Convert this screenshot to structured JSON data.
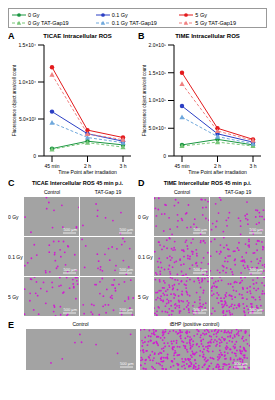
{
  "chart_data": [
    {
      "panel": "A",
      "type": "line",
      "title": "TICAE Intracellular ROS",
      "x_label": "Time Point after irradiation",
      "y_label": "Fluorescence object area/cell count",
      "categories": [
        "45 min",
        "2 h",
        "3 h"
      ],
      "ylim": [
        0,
        15000
      ],
      "yticks": [
        0,
        {
          "value": 5000,
          "label": "5.0×10³"
        },
        {
          "value": 10000,
          "label": "1.0×10⁴"
        },
        {
          "value": 15000,
          "label": "1.5×10⁴"
        }
      ],
      "series": [
        {
          "name": "0 Gy",
          "color": "#1a9641",
          "marker": "circle",
          "line_style": "solid",
          "values": [
            1000,
            2000,
            1500
          ]
        },
        {
          "name": "0.1 Gy",
          "color": "#2b3fc4",
          "marker": "circle",
          "line_style": "solid",
          "values": [
            6000,
            3000,
            2000
          ]
        },
        {
          "name": "5 Gy",
          "color": "#e31a1c",
          "marker": "circle",
          "line_style": "solid",
          "values": [
            12000,
            3500,
            2500
          ]
        },
        {
          "name": "0 Gy TAT-Gap19",
          "color": "#78c679",
          "marker": "triangle",
          "line_style": "dashed",
          "values": [
            900,
            1800,
            1200
          ]
        },
        {
          "name": "0.1 Gy TAT-Gap19",
          "color": "#6fa8dc",
          "marker": "triangle",
          "line_style": "dashed",
          "values": [
            4500,
            2500,
            1800
          ]
        },
        {
          "name": "5 Gy TAT-Gap19",
          "color": "#f08080",
          "marker": "triangle",
          "line_style": "dashed",
          "values": [
            11000,
            3000,
            2200
          ]
        }
      ]
    },
    {
      "panel": "B",
      "type": "line",
      "title": "TIME Intracellular ROS",
      "x_label": "Time Point after irradiation",
      "y_label": "Fluorescence object area/cell count",
      "categories": [
        "45 min",
        "2 h",
        "3 h"
      ],
      "ylim": [
        0,
        200000
      ],
      "yticks": [
        0,
        {
          "value": 50000,
          "label": "5.0×10⁴"
        },
        {
          "value": 100000,
          "label": "1.0×10⁵"
        },
        {
          "value": 150000,
          "label": "1.5×10⁵"
        },
        {
          "value": 200000,
          "label": "2.0×10⁵"
        }
      ],
      "series": [
        {
          "name": "0 Gy",
          "color": "#1a9641",
          "marker": "circle",
          "line_style": "solid",
          "values": [
            20000,
            30000,
            20000
          ]
        },
        {
          "name": "0.1 Gy",
          "color": "#2b3fc4",
          "marker": "circle",
          "line_style": "solid",
          "values": [
            90000,
            40000,
            25000
          ]
        },
        {
          "name": "5 Gy",
          "color": "#e31a1c",
          "marker": "circle",
          "line_style": "solid",
          "values": [
            150000,
            50000,
            30000
          ]
        },
        {
          "name": "0 Gy TAT-Gap19",
          "color": "#78c679",
          "marker": "triangle",
          "line_style": "dashed",
          "values": [
            18000,
            25000,
            18000
          ]
        },
        {
          "name": "0.1 Gy TAT-Gap19",
          "color": "#6fa8dc",
          "marker": "triangle",
          "line_style": "dashed",
          "values": [
            70000,
            35000,
            22000
          ]
        },
        {
          "name": "5 Gy TAT-Gap19",
          "color": "#f08080",
          "marker": "triangle",
          "line_style": "dashed",
          "values": [
            130000,
            45000,
            28000
          ]
        }
      ]
    }
  ],
  "image_panels": [
    {
      "panel": "C",
      "title": "TICAE Intercellular ROS 45 min p.i.",
      "columns": [
        "Control",
        "TAT-Gap 19"
      ],
      "rows": [
        "0 Gy",
        "0.1 Gy",
        "5 Gy"
      ],
      "scale_bar": "500 μm"
    },
    {
      "panel": "D",
      "title": "TIME Intercellular ROS 45 min p.i.",
      "columns": [
        "Control",
        "TAT-Gap 19"
      ],
      "rows": [
        "0 Gy",
        "0.1 Gy",
        "5 Gy"
      ],
      "scale_bar": "500 μm"
    },
    {
      "panel": "E",
      "columns": [
        "Control",
        "tBHP (positive control)"
      ],
      "scale_bar": "500 μm"
    }
  ]
}
